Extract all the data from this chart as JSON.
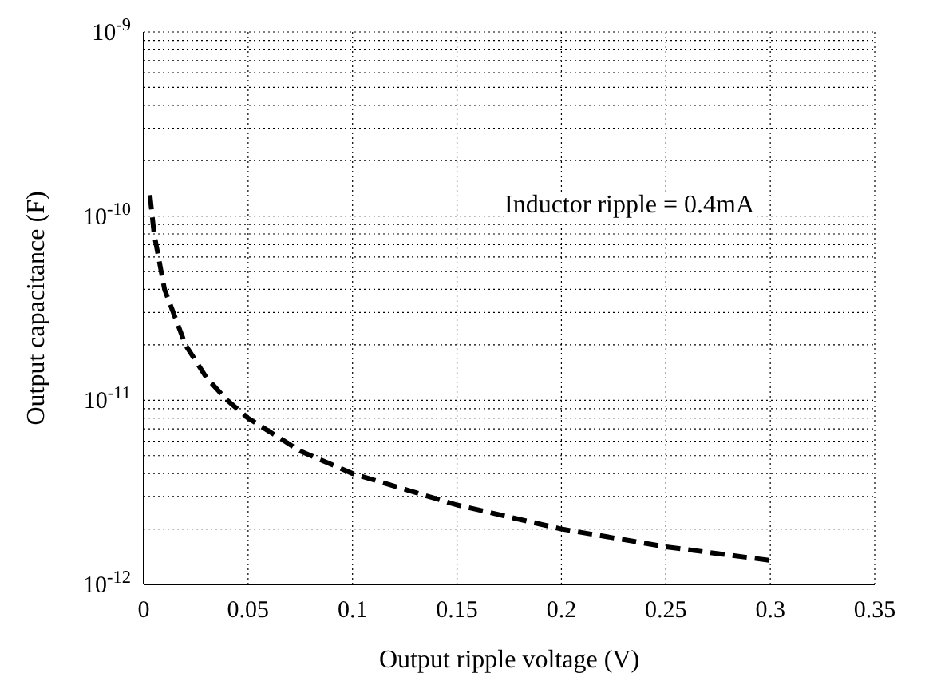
{
  "chart_data": {
    "type": "line",
    "xlabel": "Output ripple voltage (V)",
    "ylabel": "Output capacitance (F)",
    "annotations": [
      "Inductor ripple = 0.4mA"
    ],
    "x": [
      0.003,
      0.005,
      0.01,
      0.02,
      0.03,
      0.04,
      0.05,
      0.075,
      0.1,
      0.15,
      0.2,
      0.25,
      0.3
    ],
    "series": [
      {
        "color": "#000000",
        "values": [
          1.3e-10,
          8e-11,
          4e-11,
          2e-11,
          1.33e-11,
          1e-11,
          8e-12,
          5.3e-12,
          4e-12,
          2.7e-12,
          2e-12,
          1.6e-12,
          1.35e-12
        ]
      }
    ],
    "line_style": "dashed",
    "marker": "none",
    "log": "y",
    "grid": true,
    "xlim": [
      0,
      0.35
    ],
    "xticks": [
      0,
      0.05,
      0.1,
      0.15,
      0.2,
      0.25,
      0.3,
      0.35
    ],
    "ylim": [
      1e-12,
      1e-09
    ],
    "yticks": [
      {
        "value": 1e-12,
        "label": "10$^{-12}$"
      },
      {
        "value": 1e-11,
        "label": "10$^{-11}$"
      },
      {
        "value": 1e-10,
        "label": "10$^{-10}$"
      },
      {
        "value": 1e-09,
        "label": "10$^{-9}$"
      }
    ]
  }
}
